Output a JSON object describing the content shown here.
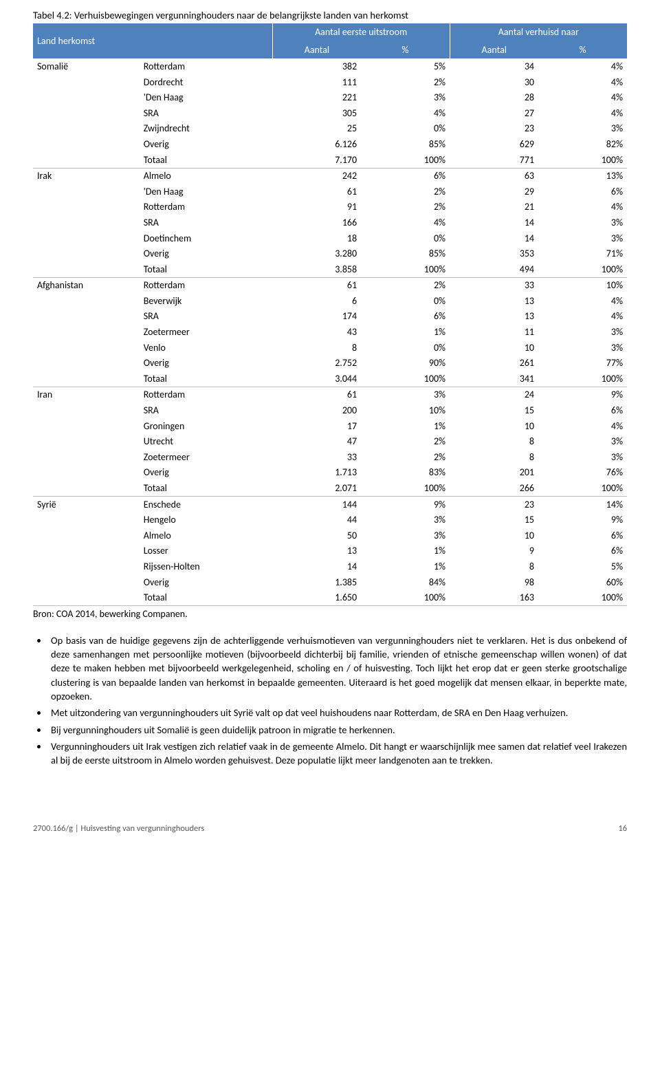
{
  "title": "Tabel 4.2: Verhuisbewegingen vergunninghouders naar de belangrijkste landen van herkomst",
  "header": {
    "col0": "Land herkomst",
    "col_group_a": "Aantal eerste uitstroom",
    "col_group_b": "Aantal verhuisd naar",
    "sub_a1": "Aantal",
    "sub_a2": "%",
    "sub_b1": "Aantal",
    "sub_b2": "%"
  },
  "source": "Bron: COA 2014, bewerking Companen.",
  "groups": [
    {
      "country": "Somalië",
      "rows": [
        {
          "city": "Rotterdam",
          "a": "382",
          "ap": "5%",
          "b": "34",
          "bp": "4%"
        },
        {
          "city": "Dordrecht",
          "a": "111",
          "ap": "2%",
          "b": "30",
          "bp": "4%"
        },
        {
          "city": "'Den Haag",
          "a": "221",
          "ap": "3%",
          "b": "28",
          "bp": "4%"
        },
        {
          "city": "SRA",
          "a": "305",
          "ap": "4%",
          "b": "27",
          "bp": "4%"
        },
        {
          "city": "Zwijndrecht",
          "a": "25",
          "ap": "0%",
          "b": "23",
          "bp": "3%"
        },
        {
          "city": "Overig",
          "a": "6.126",
          "ap": "85%",
          "b": "629",
          "bp": "82%"
        },
        {
          "city": "Totaal",
          "a": "7.170",
          "ap": "100%",
          "b": "771",
          "bp": "100%"
        }
      ]
    },
    {
      "country": "Irak",
      "rows": [
        {
          "city": "Almelo",
          "a": "242",
          "ap": "6%",
          "b": "63",
          "bp": "13%"
        },
        {
          "city": "'Den Haag",
          "a": "61",
          "ap": "2%",
          "b": "29",
          "bp": "6%"
        },
        {
          "city": "Rotterdam",
          "a": "91",
          "ap": "2%",
          "b": "21",
          "bp": "4%"
        },
        {
          "city": "SRA",
          "a": "166",
          "ap": "4%",
          "b": "14",
          "bp": "3%"
        },
        {
          "city": "Doetinchem",
          "a": "18",
          "ap": "0%",
          "b": "14",
          "bp": "3%"
        },
        {
          "city": "Overig",
          "a": "3.280",
          "ap": "85%",
          "b": "353",
          "bp": "71%"
        },
        {
          "city": "Totaal",
          "a": "3.858",
          "ap": "100%",
          "b": "494",
          "bp": "100%"
        }
      ]
    },
    {
      "country": "Afghanistan",
      "rows": [
        {
          "city": "Rotterdam",
          "a": "61",
          "ap": "2%",
          "b": "33",
          "bp": "10%"
        },
        {
          "city": "Beverwijk",
          "a": "6",
          "ap": "0%",
          "b": "13",
          "bp": "4%"
        },
        {
          "city": "SRA",
          "a": "174",
          "ap": "6%",
          "b": "13",
          "bp": "4%"
        },
        {
          "city": "Zoetermeer",
          "a": "43",
          "ap": "1%",
          "b": "11",
          "bp": "3%"
        },
        {
          "city": "Venlo",
          "a": "8",
          "ap": "0%",
          "b": "10",
          "bp": "3%"
        },
        {
          "city": "Overig",
          "a": "2.752",
          "ap": "90%",
          "b": "261",
          "bp": "77%"
        },
        {
          "city": "Totaal",
          "a": "3.044",
          "ap": "100%",
          "b": "341",
          "bp": "100%"
        }
      ]
    },
    {
      "country": "Iran",
      "rows": [
        {
          "city": "Rotterdam",
          "a": "61",
          "ap": "3%",
          "b": "24",
          "bp": "9%"
        },
        {
          "city": "SRA",
          "a": "200",
          "ap": "10%",
          "b": "15",
          "bp": "6%"
        },
        {
          "city": "Groningen",
          "a": "17",
          "ap": "1%",
          "b": "10",
          "bp": "4%"
        },
        {
          "city": "Utrecht",
          "a": "47",
          "ap": "2%",
          "b": "8",
          "bp": "3%"
        },
        {
          "city": "Zoetermeer",
          "a": "33",
          "ap": "2%",
          "b": "8",
          "bp": "3%"
        },
        {
          "city": "Overig",
          "a": "1.713",
          "ap": "83%",
          "b": "201",
          "bp": "76%"
        },
        {
          "city": "Totaal",
          "a": "2.071",
          "ap": "100%",
          "b": "266",
          "bp": "100%"
        }
      ]
    },
    {
      "country": "Syrië",
      "rows": [
        {
          "city": "Enschede",
          "a": "144",
          "ap": "9%",
          "b": "23",
          "bp": "14%"
        },
        {
          "city": "Hengelo",
          "a": "44",
          "ap": "3%",
          "b": "15",
          "bp": "9%"
        },
        {
          "city": "Almelo",
          "a": "50",
          "ap": "3%",
          "b": "10",
          "bp": "6%"
        },
        {
          "city": "Losser",
          "a": "13",
          "ap": "1%",
          "b": "9",
          "bp": "6%"
        },
        {
          "city": "Rijssen-Holten",
          "a": "14",
          "ap": "1%",
          "b": "8",
          "bp": "5%"
        },
        {
          "city": "Overig",
          "a": "1.385",
          "ap": "84%",
          "b": "98",
          "bp": "60%"
        },
        {
          "city": "Totaal",
          "a": "1.650",
          "ap": "100%",
          "b": "163",
          "bp": "100%"
        }
      ]
    }
  ],
  "bullets": [
    "Op basis van de huidige gegevens zijn de achterliggende verhuismotieven van vergunninghouders niet te verklaren. Het is dus onbekend of deze samenhangen met persoonlijke motieven (bijvoorbeeld dichterbij bij familie, vrienden of etnische gemeenschap willen wonen) of dat deze te maken hebben met bijvoorbeeld werkgelegenheid, scholing en / of huisvesting. Toch lijkt het erop dat er geen sterke grootschalige clustering is van bepaalde landen van herkomst in bepaalde gemeenten. Uiteraard is het goed mogelijk dat mensen elkaar, in beperkte mate, opzoeken.",
    "Met uitzondering van vergunninghouders uit Syrië valt op dat veel huishoudens naar Rotterdam, de SRA en Den Haag verhuizen.",
    "Bij vergunninghouders uit Somalië is geen duidelijk patroon in migratie te herkennen.",
    "Vergunninghouders uit Irak vestigen zich relatief vaak in de gemeente Almelo. Dit hangt er waarschijnlijk mee samen dat relatief veel Irakezen al bij de eerste uitstroom in Almelo worden gehuisvest. Deze populatie lijkt meer landgenoten aan te trekken."
  ],
  "footer": "2700.166/g | Huisvesting van vergunninghouders",
  "page_number": "16",
  "colors": {
    "header_bg": "#4f81bd",
    "header_text": "#ffffff",
    "border": "#bfbfbf",
    "footer_text": "#595959"
  },
  "fonts": {
    "body_family": "Calibri",
    "body_size_pt": 11,
    "footer_size_pt": 9
  }
}
